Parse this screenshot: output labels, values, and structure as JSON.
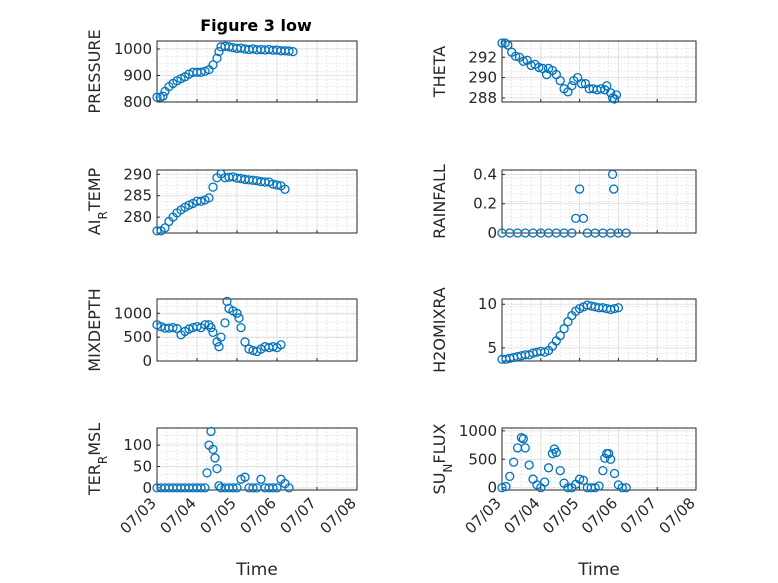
{
  "figure_title": "Figure 3 low",
  "chart_data": [
    {
      "type": "scatter",
      "id": "pressure",
      "ylabel": "PRESSURE",
      "ylim": [
        800,
        1030
      ],
      "yticks": [
        "800",
        "900",
        "1000"
      ],
      "xlim": [
        "07/03",
        "07/08"
      ],
      "xticks": [],
      "points": [
        [
          0.0,
          818
        ],
        [
          0.08,
          818
        ],
        [
          0.15,
          822
        ],
        [
          0.2,
          840
        ],
        [
          0.3,
          858
        ],
        [
          0.4,
          870
        ],
        [
          0.5,
          880
        ],
        [
          0.6,
          888
        ],
        [
          0.7,
          895
        ],
        [
          0.8,
          905
        ],
        [
          0.9,
          912
        ],
        [
          1.0,
          912
        ],
        [
          1.1,
          912
        ],
        [
          1.2,
          916
        ],
        [
          1.3,
          922
        ],
        [
          1.4,
          940
        ],
        [
          1.5,
          965
        ],
        [
          1.55,
          990
        ],
        [
          1.6,
          1008
        ],
        [
          1.7,
          1010
        ],
        [
          1.8,
          1008
        ],
        [
          1.9,
          1005
        ],
        [
          2.0,
          1002
        ],
        [
          2.1,
          1003
        ],
        [
          2.2,
          1000
        ],
        [
          2.3,
          998
        ],
        [
          2.4,
          1000
        ],
        [
          2.5,
          997
        ],
        [
          2.6,
          998
        ],
        [
          2.7,
          996
        ],
        [
          2.8,
          998
        ],
        [
          2.9,
          995
        ],
        [
          3.0,
          996
        ],
        [
          3.1,
          993
        ],
        [
          3.2,
          993
        ],
        [
          3.3,
          992
        ],
        [
          3.4,
          990
        ]
      ]
    },
    {
      "type": "scatter",
      "id": "theta",
      "ylabel": "THETA",
      "ylim": [
        287.6,
        293.6
      ],
      "yticks": [
        "288",
        "290",
        "292"
      ],
      "xlim": [
        "07/03",
        "07/08"
      ],
      "xticks": [],
      "points": [
        [
          0.0,
          293.4
        ],
        [
          0.08,
          293.4
        ],
        [
          0.15,
          293.2
        ],
        [
          0.25,
          292.5
        ],
        [
          0.35,
          292.1
        ],
        [
          0.45,
          292.0
        ],
        [
          0.55,
          291.6
        ],
        [
          0.65,
          291.7
        ],
        [
          0.75,
          291.2
        ],
        [
          0.85,
          291.3
        ],
        [
          0.95,
          291.0
        ],
        [
          1.05,
          290.9
        ],
        [
          1.15,
          290.3
        ],
        [
          1.2,
          290.9
        ],
        [
          1.3,
          290.7
        ],
        [
          1.4,
          290.3
        ],
        [
          1.5,
          289.7
        ],
        [
          1.6,
          288.9
        ],
        [
          1.7,
          288.6
        ],
        [
          1.8,
          289.2
        ],
        [
          1.85,
          289.7
        ],
        [
          1.95,
          290.0
        ],
        [
          2.05,
          289.4
        ],
        [
          2.15,
          289.4
        ],
        [
          2.25,
          288.9
        ],
        [
          2.35,
          288.9
        ],
        [
          2.45,
          288.8
        ],
        [
          2.55,
          288.9
        ],
        [
          2.65,
          288.8
        ],
        [
          2.7,
          289.2
        ],
        [
          2.8,
          288.5
        ],
        [
          2.85,
          288.0
        ],
        [
          2.9,
          287.9
        ],
        [
          2.95,
          288.3
        ]
      ]
    },
    {
      "type": "scatter",
      "id": "air_temp",
      "ylabel": "AIR_TEMP",
      "ylim": [
        276.3,
        291
      ],
      "yticks": [
        "280",
        "285",
        "290"
      ],
      "xlim": [
        "07/03",
        "07/08"
      ],
      "xticks": [],
      "points": [
        [
          0.0,
          276.8
        ],
        [
          0.1,
          276.8
        ],
        [
          0.2,
          277.5
        ],
        [
          0.3,
          279.0
        ],
        [
          0.4,
          280.0
        ],
        [
          0.5,
          281.0
        ],
        [
          0.6,
          281.7
        ],
        [
          0.7,
          282.3
        ],
        [
          0.8,
          282.8
        ],
        [
          0.9,
          283.2
        ],
        [
          1.0,
          283.7
        ],
        [
          1.1,
          283.7
        ],
        [
          1.2,
          284.0
        ],
        [
          1.3,
          284.5
        ],
        [
          1.4,
          287.0
        ],
        [
          1.5,
          289.2
        ],
        [
          1.6,
          290.1
        ],
        [
          1.7,
          289.2
        ],
        [
          1.8,
          289.3
        ],
        [
          1.9,
          289.4
        ],
        [
          2.0,
          289.1
        ],
        [
          2.1,
          289.0
        ],
        [
          2.2,
          288.8
        ],
        [
          2.3,
          288.7
        ],
        [
          2.4,
          288.6
        ],
        [
          2.5,
          288.5
        ],
        [
          2.6,
          288.3
        ],
        [
          2.7,
          288.2
        ],
        [
          2.8,
          288.2
        ],
        [
          2.9,
          287.7
        ],
        [
          3.0,
          287.5
        ],
        [
          3.1,
          287.3
        ],
        [
          3.2,
          286.5
        ]
      ]
    },
    {
      "type": "scatter",
      "id": "rainfall",
      "ylabel": "RAINFALL",
      "ylim": [
        0,
        0.43
      ],
      "yticks": [
        "0",
        "0.2",
        "0.4"
      ],
      "xlim": [
        "07/03",
        "07/08"
      ],
      "xticks": [],
      "points": [
        [
          0.0,
          0
        ],
        [
          0.2,
          0
        ],
        [
          0.4,
          0
        ],
        [
          0.6,
          0
        ],
        [
          0.8,
          0
        ],
        [
          1.0,
          0
        ],
        [
          1.2,
          0
        ],
        [
          1.4,
          0
        ],
        [
          1.6,
          0
        ],
        [
          1.8,
          0
        ],
        [
          1.9,
          0.1
        ],
        [
          2.0,
          0.3
        ],
        [
          2.1,
          0.1
        ],
        [
          2.2,
          0
        ],
        [
          2.4,
          0
        ],
        [
          2.6,
          0
        ],
        [
          2.8,
          0
        ],
        [
          2.85,
          0.4
        ],
        [
          2.88,
          0.3
        ],
        [
          3.0,
          0
        ],
        [
          3.2,
          0
        ]
      ]
    },
    {
      "type": "scatter",
      "id": "mixdepth",
      "ylabel": "MIXDEPTH",
      "ylim": [
        0,
        1300
      ],
      "yticks": [
        "0",
        "500",
        "1000"
      ],
      "xlim": [
        "07/03",
        "07/08"
      ],
      "xticks": [],
      "points": [
        [
          0.0,
          760
        ],
        [
          0.1,
          720
        ],
        [
          0.2,
          690
        ],
        [
          0.3,
          690
        ],
        [
          0.4,
          700
        ],
        [
          0.5,
          680
        ],
        [
          0.6,
          550
        ],
        [
          0.7,
          620
        ],
        [
          0.8,
          670
        ],
        [
          0.9,
          700
        ],
        [
          1.0,
          720
        ],
        [
          1.1,
          700
        ],
        [
          1.2,
          760
        ],
        [
          1.3,
          760
        ],
        [
          1.35,
          700
        ],
        [
          1.4,
          600
        ],
        [
          1.5,
          400
        ],
        [
          1.55,
          300
        ],
        [
          1.6,
          500
        ],
        [
          1.7,
          800
        ],
        [
          1.75,
          1250
        ],
        [
          1.8,
          1100
        ],
        [
          1.9,
          1050
        ],
        [
          2.0,
          1000
        ],
        [
          2.05,
          900
        ],
        [
          2.1,
          700
        ],
        [
          2.2,
          400
        ],
        [
          2.3,
          250
        ],
        [
          2.4,
          220
        ],
        [
          2.5,
          200
        ],
        [
          2.6,
          250
        ],
        [
          2.7,
          300
        ],
        [
          2.8,
          280
        ],
        [
          2.9,
          300
        ],
        [
          3.0,
          280
        ],
        [
          3.1,
          340
        ]
      ]
    },
    {
      "type": "scatter",
      "id": "h2omixra",
      "ylabel": "H2OMIXRA",
      "ylim": [
        3.5,
        10.6
      ],
      "yticks": [
        "5",
        "10"
      ],
      "xlim": [
        "07/03",
        "07/08"
      ],
      "xticks": [],
      "points": [
        [
          0.0,
          3.7
        ],
        [
          0.1,
          3.7
        ],
        [
          0.2,
          3.8
        ],
        [
          0.3,
          3.9
        ],
        [
          0.4,
          4.0
        ],
        [
          0.5,
          4.1
        ],
        [
          0.6,
          4.2
        ],
        [
          0.7,
          4.2
        ],
        [
          0.8,
          4.4
        ],
        [
          0.9,
          4.5
        ],
        [
          1.0,
          4.6
        ],
        [
          1.1,
          4.5
        ],
        [
          1.2,
          4.7
        ],
        [
          1.3,
          5.2
        ],
        [
          1.4,
          5.8
        ],
        [
          1.5,
          6.4
        ],
        [
          1.6,
          7.2
        ],
        [
          1.7,
          8.0
        ],
        [
          1.8,
          8.7
        ],
        [
          1.9,
          9.2
        ],
        [
          2.0,
          9.5
        ],
        [
          2.1,
          9.7
        ],
        [
          2.2,
          9.9
        ],
        [
          2.3,
          9.8
        ],
        [
          2.4,
          9.7
        ],
        [
          2.5,
          9.6
        ],
        [
          2.6,
          9.6
        ],
        [
          2.7,
          9.5
        ],
        [
          2.8,
          9.4
        ],
        [
          2.9,
          9.5
        ],
        [
          3.0,
          9.6
        ]
      ]
    },
    {
      "type": "scatter",
      "id": "terr_msl",
      "ylabel": "TERR_MSL",
      "ylim": [
        -5,
        140
      ],
      "yticks": [
        "0",
        "50",
        "100"
      ],
      "xlim": [
        "07/03",
        "07/08"
      ],
      "xticks": [
        "07/03",
        "07/04",
        "07/05",
        "07/06",
        "07/07",
        "07/08"
      ],
      "xlabel": "Time",
      "points": [
        [
          0.0,
          0
        ],
        [
          0.1,
          0
        ],
        [
          0.2,
          0
        ],
        [
          0.3,
          0
        ],
        [
          0.4,
          0
        ],
        [
          0.5,
          0
        ],
        [
          0.6,
          0
        ],
        [
          0.7,
          0
        ],
        [
          0.8,
          0
        ],
        [
          0.9,
          0
        ],
        [
          1.0,
          0
        ],
        [
          1.1,
          0
        ],
        [
          1.2,
          0
        ],
        [
          1.25,
          35
        ],
        [
          1.3,
          100
        ],
        [
          1.35,
          132
        ],
        [
          1.4,
          90
        ],
        [
          1.45,
          70
        ],
        [
          1.5,
          45
        ],
        [
          1.55,
          5
        ],
        [
          1.6,
          0
        ],
        [
          1.7,
          0
        ],
        [
          1.8,
          0
        ],
        [
          1.9,
          0
        ],
        [
          2.0,
          0
        ],
        [
          2.1,
          20
        ],
        [
          2.2,
          25
        ],
        [
          2.3,
          0
        ],
        [
          2.4,
          0
        ],
        [
          2.5,
          0
        ],
        [
          2.6,
          20
        ],
        [
          2.7,
          0
        ],
        [
          2.8,
          0
        ],
        [
          2.9,
          0
        ],
        [
          3.0,
          0
        ],
        [
          3.1,
          20
        ],
        [
          3.2,
          10
        ],
        [
          3.3,
          0
        ]
      ]
    },
    {
      "type": "scatter",
      "id": "sun_flux",
      "ylabel": "SUN_FLUX",
      "ylim": [
        -40,
        1050
      ],
      "yticks": [
        "0",
        "500",
        "1000"
      ],
      "xlim": [
        "07/03",
        "07/08"
      ],
      "xticks": [
        "07/03",
        "07/04",
        "07/05",
        "07/06",
        "07/07",
        "07/08"
      ],
      "xlabel": "Time",
      "points": [
        [
          0.0,
          0
        ],
        [
          0.1,
          20
        ],
        [
          0.2,
          200
        ],
        [
          0.3,
          450
        ],
        [
          0.4,
          700
        ],
        [
          0.5,
          880
        ],
        [
          0.55,
          860
        ],
        [
          0.6,
          700
        ],
        [
          0.7,
          400
        ],
        [
          0.8,
          150
        ],
        [
          0.9,
          50
        ],
        [
          1.0,
          0
        ],
        [
          1.1,
          100
        ],
        [
          1.2,
          350
        ],
        [
          1.3,
          600
        ],
        [
          1.35,
          680
        ],
        [
          1.4,
          620
        ],
        [
          1.5,
          300
        ],
        [
          1.6,
          80
        ],
        [
          1.7,
          0
        ],
        [
          1.8,
          0
        ],
        [
          1.9,
          60
        ],
        [
          2.0,
          150
        ],
        [
          2.1,
          130
        ],
        [
          2.2,
          0
        ],
        [
          2.3,
          0
        ],
        [
          2.4,
          0
        ],
        [
          2.5,
          30
        ],
        [
          2.6,
          300
        ],
        [
          2.65,
          520
        ],
        [
          2.7,
          600
        ],
        [
          2.75,
          600
        ],
        [
          2.8,
          500
        ],
        [
          2.9,
          250
        ],
        [
          3.0,
          50
        ],
        [
          3.1,
          0
        ],
        [
          3.2,
          0
        ]
      ]
    }
  ]
}
